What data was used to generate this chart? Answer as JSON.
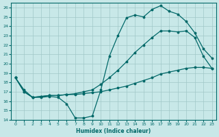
{
  "background_color": "#c8e8e8",
  "grid_color": "#a0c8c8",
  "line_color": "#006868",
  "xlabel": "Humidex (Indice chaleur)",
  "xlim": [
    -0.5,
    23.5
  ],
  "ylim": [
    14,
    26.5
  ],
  "yticks": [
    14,
    15,
    16,
    17,
    18,
    19,
    20,
    21,
    22,
    23,
    24,
    25,
    26
  ],
  "xticks": [
    0,
    1,
    2,
    3,
    4,
    5,
    6,
    7,
    8,
    9,
    10,
    11,
    12,
    13,
    14,
    15,
    16,
    17,
    18,
    19,
    20,
    21,
    22,
    23
  ],
  "curve1_x": [
    0,
    1,
    2,
    3,
    4,
    5,
    6,
    7,
    8,
    9,
    10,
    11,
    12,
    13,
    14,
    15,
    16,
    17,
    18,
    19,
    20,
    21,
    22,
    23
  ],
  "curve1_y": [
    18.5,
    17.2,
    16.4,
    16.4,
    16.5,
    16.4,
    15.7,
    14.2,
    14.2,
    14.4,
    17.2,
    20.8,
    23.0,
    24.9,
    25.2,
    25.0,
    25.8,
    26.2,
    25.6,
    25.3,
    24.5,
    23.3,
    21.6,
    20.6
  ],
  "curve2_x": [
    0,
    1,
    2,
    3,
    4,
    5,
    6,
    7,
    8,
    9,
    10,
    11,
    12,
    13,
    14,
    15,
    16,
    17,
    18,
    19,
    20,
    21,
    22,
    23
  ],
  "curve2_y": [
    18.5,
    17.0,
    16.4,
    16.5,
    16.6,
    16.6,
    16.7,
    16.8,
    17.0,
    17.2,
    17.8,
    18.5,
    19.3,
    20.2,
    21.2,
    22.0,
    22.8,
    23.5,
    23.5,
    23.4,
    23.5,
    22.8,
    20.8,
    19.5
  ],
  "curve3_x": [
    0,
    1,
    2,
    3,
    4,
    5,
    6,
    7,
    8,
    9,
    10,
    11,
    12,
    13,
    14,
    15,
    16,
    17,
    18,
    19,
    20,
    21,
    22,
    23
  ],
  "curve3_y": [
    18.5,
    17.0,
    16.4,
    16.5,
    16.6,
    16.6,
    16.7,
    16.7,
    16.8,
    16.9,
    17.0,
    17.2,
    17.4,
    17.6,
    17.9,
    18.2,
    18.5,
    18.9,
    19.1,
    19.3,
    19.5,
    19.6,
    19.6,
    19.5
  ]
}
